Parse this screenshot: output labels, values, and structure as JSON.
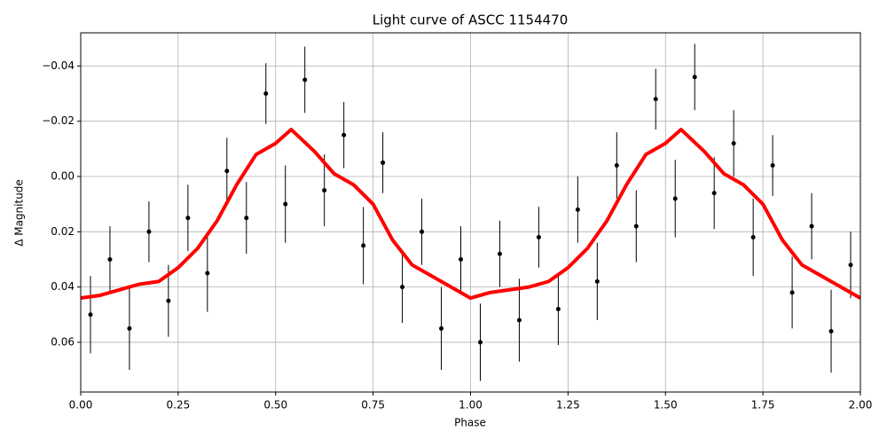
{
  "chart_data": {
    "type": "line",
    "title": "Light curve of ASCC 1154470",
    "xlabel": "Phase",
    "ylabel": "Δ Magnitude",
    "xlim": [
      0,
      2
    ],
    "ylim": [
      -0.052,
      0.078
    ],
    "y_inverted": true,
    "grid": true,
    "xticks": [
      {
        "value": 0,
        "label": "0.00"
      },
      {
        "value": 0.25,
        "label": "0.25"
      },
      {
        "value": 0.5,
        "label": "0.50"
      },
      {
        "value": 0.75,
        "label": "0.75"
      },
      {
        "value": 1,
        "label": "1.00"
      },
      {
        "value": 1.25,
        "label": "1.25"
      },
      {
        "value": 1.5,
        "label": "1.50"
      },
      {
        "value": 1.75,
        "label": "1.75"
      },
      {
        "value": 2,
        "label": "2.00"
      }
    ],
    "yticks": [
      {
        "value": -0.04,
        "label": "−0.04"
      },
      {
        "value": -0.02,
        "label": "−0.02"
      },
      {
        "value": 0,
        "label": "0.00"
      },
      {
        "value": 0.02,
        "label": "0.02"
      },
      {
        "value": 0.04,
        "label": "0.04"
      },
      {
        "value": 0.06,
        "label": "0.06"
      }
    ],
    "series": [
      {
        "style": "errorbar",
        "color": "#000000",
        "x": [
          0.025,
          0.075,
          0.125,
          0.175,
          0.225,
          0.275,
          0.325,
          0.375,
          0.425,
          0.475,
          0.525,
          0.575,
          0.625,
          0.675,
          0.725,
          0.775,
          0.825,
          0.875,
          0.925,
          0.975,
          1.025,
          1.075,
          1.125,
          1.175,
          1.225,
          1.275,
          1.325,
          1.375,
          1.425,
          1.475,
          1.525,
          1.575,
          1.625,
          1.675,
          1.725,
          1.775,
          1.825,
          1.875,
          1.925,
          1.975
        ],
        "values": [
          0.05,
          0.03,
          0.055,
          0.02,
          0.045,
          0.015,
          0.035,
          -0.002,
          0.015,
          -0.03,
          0.01,
          -0.035,
          0.005,
          -0.015,
          0.025,
          -0.005,
          0.04,
          0.02,
          0.055,
          0.03,
          0.06,
          0.028,
          0.052,
          0.022,
          0.048,
          0.012,
          0.038,
          -0.004,
          0.018,
          -0.028,
          0.008,
          -0.036,
          0.006,
          -0.012,
          0.022,
          -0.004,
          0.042,
          0.018,
          0.056,
          0.032
        ],
        "errors": [
          0.014,
          0.012,
          0.015,
          0.011,
          0.013,
          0.012,
          0.014,
          0.012,
          0.013,
          0.011,
          0.014,
          0.012,
          0.013,
          0.012,
          0.014,
          0.011,
          0.013,
          0.012,
          0.015,
          0.012,
          0.014,
          0.012,
          0.015,
          0.011,
          0.013,
          0.012,
          0.014,
          0.012,
          0.013,
          0.011,
          0.014,
          0.012,
          0.013,
          0.012,
          0.014,
          0.011,
          0.013,
          0.012,
          0.015,
          0.012
        ]
      },
      {
        "style": "line",
        "color": "#ff0000",
        "x": [
          0,
          0.05,
          0.1,
          0.15,
          0.2,
          0.25,
          0.3,
          0.35,
          0.4,
          0.45,
          0.5,
          0.54,
          0.6,
          0.65,
          0.7,
          0.75,
          0.8,
          0.85,
          0.9,
          0.95,
          1,
          1.05,
          1.1,
          1.15,
          1.2,
          1.25,
          1.3,
          1.35,
          1.4,
          1.45,
          1.5,
          1.54,
          1.6,
          1.65,
          1.7,
          1.75,
          1.8,
          1.85,
          1.9,
          1.95,
          2
        ],
        "values": [
          0.044,
          0.043,
          0.041,
          0.039,
          0.038,
          0.033,
          0.026,
          0.016,
          0.003,
          -0.008,
          -0.012,
          -0.017,
          -0.009,
          -0.001,
          0.003,
          0.01,
          0.023,
          0.032,
          0.036,
          0.04,
          0.044,
          0.042,
          0.041,
          0.04,
          0.038,
          0.033,
          0.026,
          0.016,
          0.003,
          -0.008,
          -0.012,
          -0.017,
          -0.009,
          -0.001,
          0.003,
          0.01,
          0.023,
          0.032,
          0.036,
          0.04,
          0.044
        ]
      }
    ]
  }
}
